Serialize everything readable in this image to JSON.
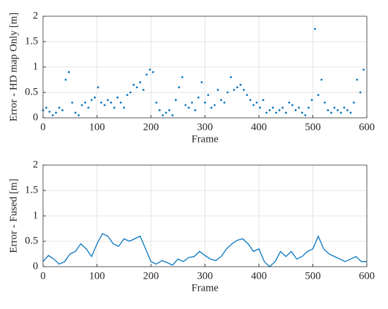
{
  "chart_data": [
    {
      "type": "scatter",
      "ylabel": "Error - HD map Only [m]",
      "xlabel": "Frame",
      "color": "#0072bd",
      "x": [
        0,
        6,
        12,
        18,
        24,
        30,
        36,
        42,
        48,
        54,
        60,
        66,
        72,
        78,
        84,
        90,
        96,
        102,
        108,
        114,
        120,
        126,
        132,
        138,
        144,
        150,
        156,
        162,
        168,
        174,
        180,
        186,
        192,
        198,
        204,
        210,
        216,
        222,
        228,
        234,
        240,
        246,
        252,
        258,
        264,
        270,
        276,
        282,
        288,
        294,
        300,
        306,
        312,
        318,
        324,
        330,
        336,
        342,
        348,
        354,
        360,
        366,
        372,
        378,
        384,
        390,
        396,
        402,
        408,
        414,
        420,
        426,
        432,
        438,
        444,
        450,
        456,
        462,
        468,
        474,
        480,
        486,
        492,
        498,
        504,
        510,
        516,
        522,
        528,
        534,
        540,
        546,
        552,
        558,
        564,
        570,
        576,
        582,
        588,
        594
      ],
      "values": [
        0.15,
        0.2,
        0.12,
        0.05,
        0.1,
        0.2,
        0.15,
        0.75,
        0.9,
        0.3,
        0.1,
        0.05,
        0.25,
        0.3,
        0.2,
        0.35,
        0.4,
        0.6,
        0.3,
        0.25,
        0.35,
        0.3,
        0.2,
        0.4,
        0.3,
        0.2,
        0.45,
        0.5,
        0.65,
        0.6,
        0.7,
        0.55,
        0.85,
        0.95,
        0.9,
        0.3,
        0.15,
        0.05,
        0.1,
        0.15,
        0.05,
        0.35,
        0.6,
        0.8,
        0.25,
        0.2,
        0.3,
        0.15,
        0.4,
        0.7,
        0.3,
        0.45,
        0.2,
        0.25,
        0.55,
        0.35,
        0.3,
        0.5,
        0.8,
        0.55,
        0.6,
        0.65,
        0.55,
        0.45,
        0.35,
        0.25,
        0.3,
        0.2,
        0.35,
        0.1,
        0.15,
        0.2,
        0.1,
        0.15,
        0.2,
        0.1,
        0.3,
        0.25,
        0.15,
        0.2,
        0.1,
        0.05,
        0.2,
        0.35,
        1.75,
        0.45,
        0.75,
        0.3,
        0.15,
        0.1,
        0.2,
        0.15,
        0.1,
        0.2,
        0.15,
        0.1,
        0.3,
        0.75,
        0.5,
        0.95
      ],
      "xlim": [
        0,
        600
      ],
      "ylim": [
        0,
        2
      ],
      "xticks": [
        0,
        100,
        200,
        300,
        400,
        500,
        600
      ],
      "yticks": [
        0,
        0.5,
        1,
        1.5,
        2
      ],
      "grid": true
    },
    {
      "type": "line",
      "ylabel": "Error - Fused [m]",
      "xlabel": "Frame",
      "color": "#0072bd",
      "x": [
        0,
        10,
        20,
        30,
        40,
        50,
        60,
        70,
        80,
        90,
        100,
        110,
        120,
        130,
        140,
        150,
        160,
        170,
        180,
        190,
        200,
        210,
        220,
        230,
        240,
        250,
        260,
        270,
        280,
        290,
        300,
        310,
        320,
        330,
        340,
        350,
        360,
        370,
        380,
        390,
        400,
        410,
        420,
        430,
        440,
        450,
        460,
        470,
        480,
        490,
        500,
        510,
        520,
        530,
        540,
        550,
        560,
        570,
        580,
        590,
        600
      ],
      "values": [
        0.1,
        0.22,
        0.15,
        0.05,
        0.1,
        0.25,
        0.3,
        0.45,
        0.35,
        0.2,
        0.45,
        0.65,
        0.6,
        0.45,
        0.4,
        0.55,
        0.5,
        0.55,
        0.6,
        0.35,
        0.1,
        0.05,
        0.12,
        0.08,
        0.03,
        0.15,
        0.1,
        0.18,
        0.2,
        0.3,
        0.22,
        0.15,
        0.12,
        0.2,
        0.35,
        0.45,
        0.52,
        0.55,
        0.45,
        0.3,
        0.35,
        0.1,
        0.0,
        0.1,
        0.3,
        0.2,
        0.3,
        0.15,
        0.2,
        0.3,
        0.35,
        0.6,
        0.35,
        0.25,
        0.2,
        0.15,
        0.1,
        0.15,
        0.2,
        0.1,
        0.1
      ],
      "xlim": [
        0,
        600
      ],
      "ylim": [
        0,
        2
      ],
      "xticks": [
        0,
        100,
        200,
        300,
        400,
        500,
        600
      ],
      "yticks": [
        0,
        0.5,
        1,
        1.5,
        2
      ],
      "grid": true
    }
  ]
}
